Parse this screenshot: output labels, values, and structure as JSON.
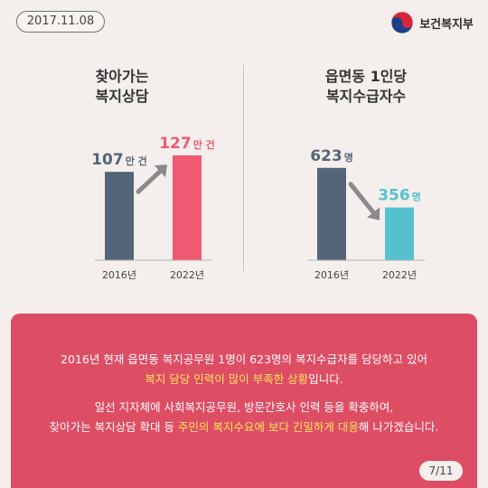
{
  "date": "2017.11.08",
  "ministry": "보건복지부",
  "page_indicator": "7/11",
  "left_title": "찾아가는\n복지상담",
  "right_title": "읍면동 1인당\n복지수급자수",
  "colors": {
    "dark_bar": "#556579",
    "pink_bar": "#ef5a72",
    "teal_bar": "#55c1cf",
    "card": "#dd4d64",
    "highlight": "#ffe45c"
  },
  "chart_data": [
    {
      "type": "bar",
      "title": "찾아가는 복지상담",
      "categories": [
        "2016년",
        "2022년"
      ],
      "values": [
        107,
        127
      ],
      "value_labels": [
        "107",
        "127"
      ],
      "unit": "만 건",
      "ylim": [
        0,
        140
      ],
      "grid": false
    },
    {
      "type": "bar",
      "title": "읍면동 1인당 복지수급자수",
      "categories": [
        "2016년",
        "2022년"
      ],
      "values": [
        623,
        356
      ],
      "value_labels": [
        "623",
        "356"
      ],
      "unit": "명",
      "ylim": [
        0,
        780
      ],
      "grid": false
    }
  ],
  "message": {
    "line1": "2016년 현재 읍면동 복지공무원 1명이 623명의 복지수급자를 담당하고 있어",
    "line2_highlight": "복지 담당 인력이 많이 부족한 상황",
    "line2_rest": "입니다.",
    "line3": "일선 지자체에 사회복지공무원, 방문간호사 인력 등을 확충하여,",
    "line4_pre": "찾아가는 복지상담 확대 등 ",
    "line4_highlight": "주민의 복지수요에 보다 긴밀하게 대응",
    "line4_post": "해 나가겠습니다."
  }
}
